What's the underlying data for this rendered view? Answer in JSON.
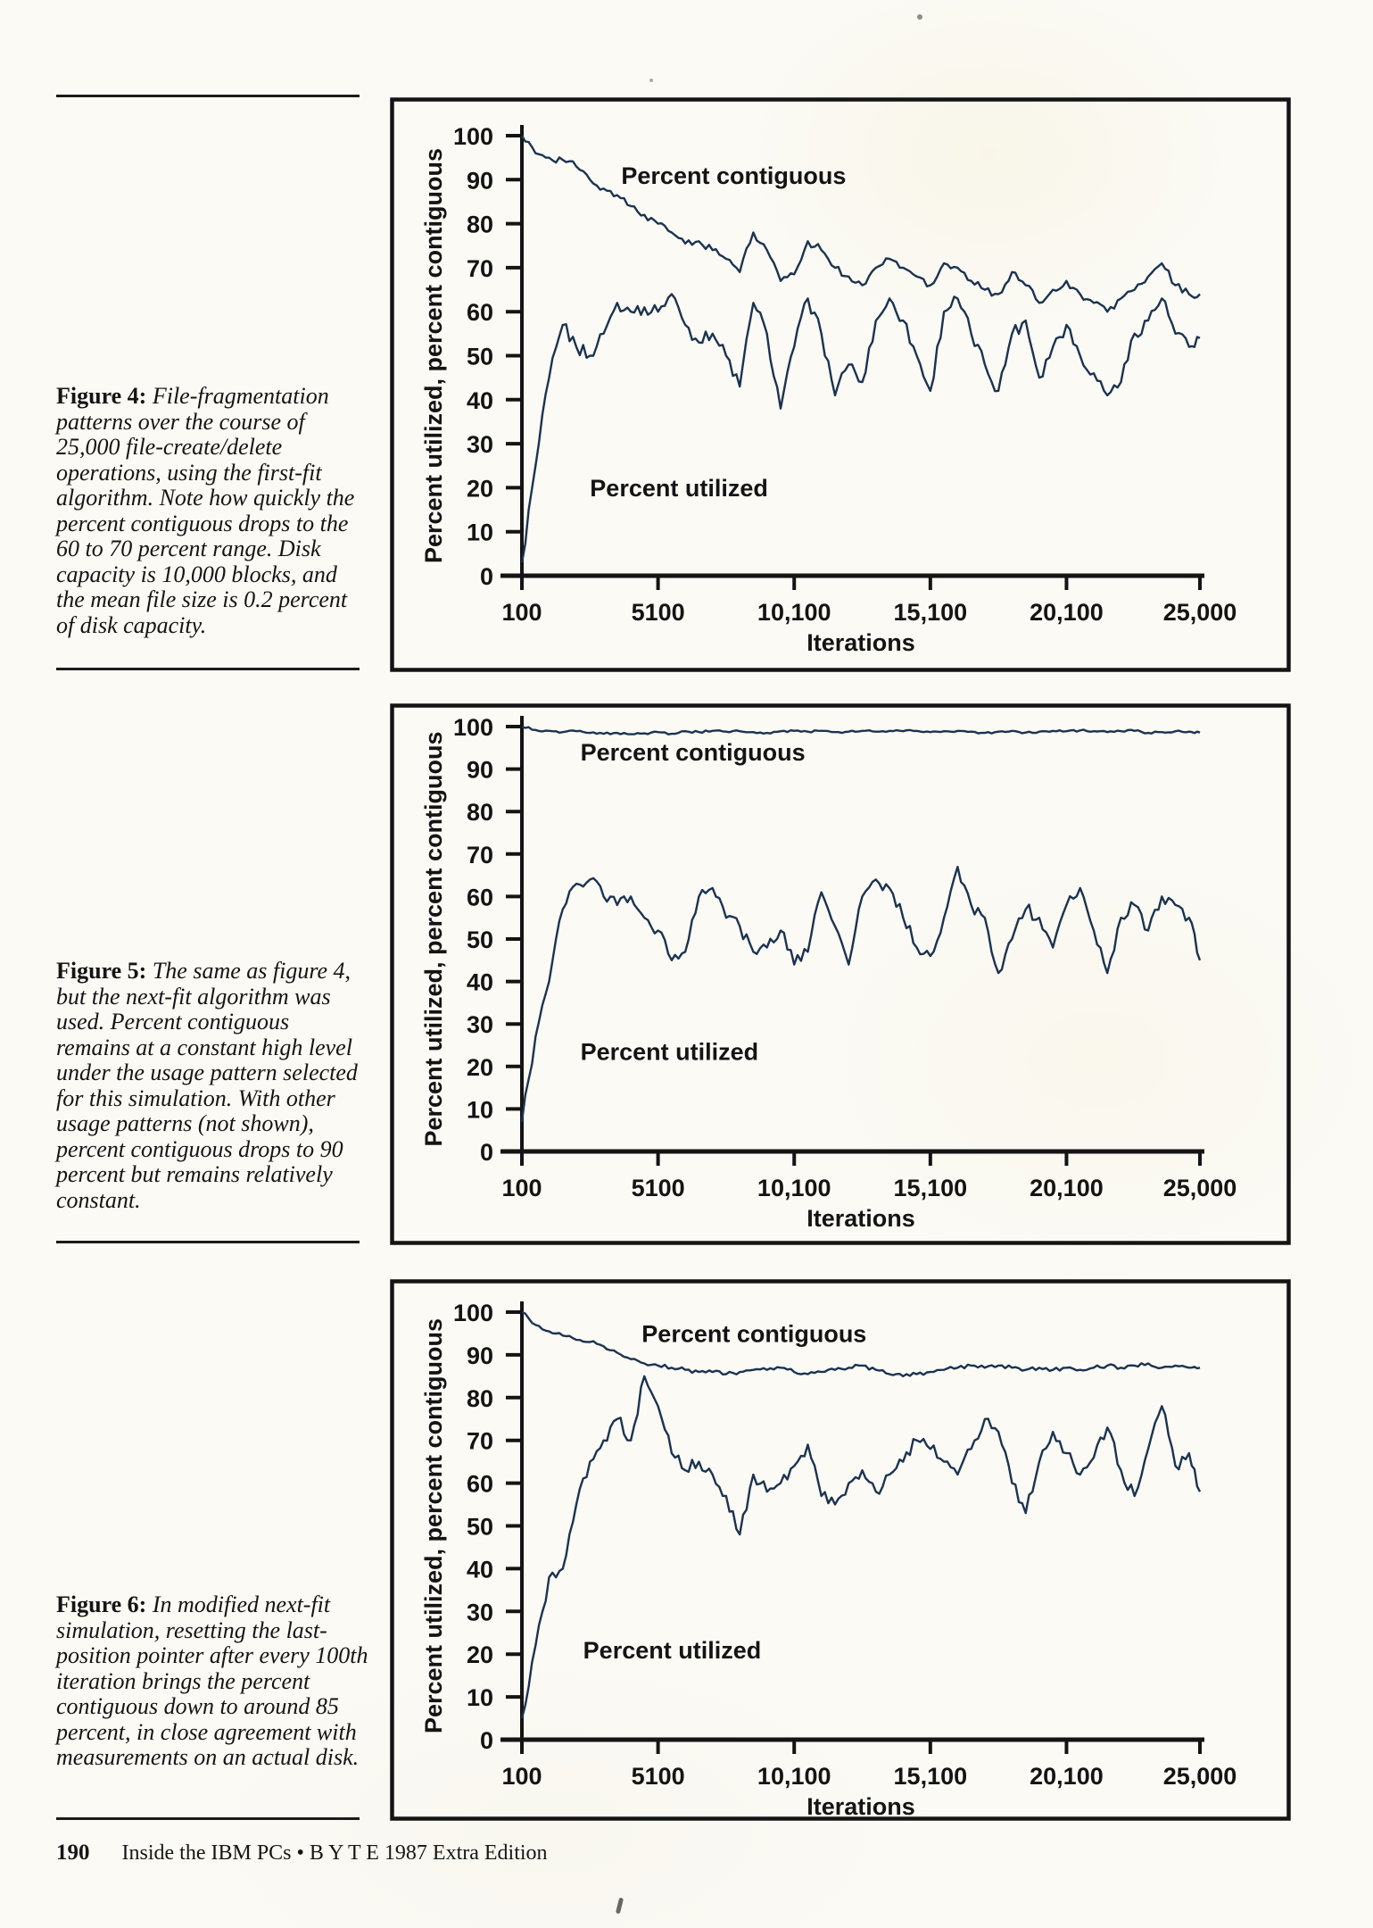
{
  "page": {
    "ink": "#141414",
    "line_color": "#1b3350",
    "background": "#fbfaf5",
    "footer": {
      "page_number": "190",
      "edition_text": "Inside the IBM PCs  •  B Y T E 1987 Extra Edition"
    }
  },
  "figures": [
    {
      "label": "Figure 4:",
      "text": " File-fragmentation patterns over the course of 25,000 file-create/delete operations, using the first-fit algorithm. Note how quickly the percent contiguous drops to the 60 to 70 percent range. Disk capacity is 10,000 blocks, and the mean file size is 0.2 percent of disk capacity."
    },
    {
      "label": "Figure 5:",
      "text": " The same as figure 4, but the next-fit algorithm was used. Percent contiguous remains at a constant high level under the usage pattern selected for this simulation. With other usage patterns (not shown), percent contiguous drops to 90 percent but remains relatively constant."
    },
    {
      "label": "Figure 6:",
      "text": " In modified next-fit simulation, resetting the last-position pointer after every 100th iteration brings the percent contiguous down to around 85 percent, in close agreement with measurements on an actual disk."
    }
  ],
  "chart_data": [
    {
      "type": "line",
      "title": "",
      "xlabel": "Iterations",
      "ylabel": "Percent utilized, percent contiguous",
      "xlim": [
        100,
        25000
      ],
      "ylim": [
        0,
        100
      ],
      "grid": false,
      "legend_position": "inline-annotations",
      "y_ticks": [
        0,
        10,
        20,
        30,
        40,
        50,
        60,
        70,
        80,
        90,
        100
      ],
      "x_ticks": [
        "100",
        "5100",
        "10,100",
        "15,100",
        "20,100",
        "25,000"
      ],
      "x_tick_values": [
        100,
        5100,
        10100,
        15100,
        20100,
        25000
      ],
      "x": [
        100,
        600,
        1100,
        1600,
        2100,
        2600,
        3100,
        3600,
        4100,
        4600,
        5100,
        5600,
        6100,
        6600,
        7100,
        7600,
        8100,
        8600,
        9100,
        9600,
        10100,
        10600,
        11100,
        11600,
        12100,
        12600,
        13100,
        13600,
        14100,
        14600,
        15100,
        15600,
        16100,
        16600,
        17100,
        17600,
        18100,
        18600,
        19100,
        19600,
        20100,
        20600,
        21100,
        21600,
        22100,
        22600,
        23100,
        23600,
        24100,
        24600,
        25000
      ],
      "series": [
        {
          "name": "Percent contiguous",
          "values": [
            100,
            96,
            95,
            94.5,
            93,
            90,
            88,
            86.5,
            84,
            82,
            80,
            78,
            75.5,
            76,
            74,
            72,
            69,
            78,
            74,
            67,
            68.5,
            76,
            74,
            70,
            68,
            66,
            70,
            72,
            70,
            68,
            66,
            71,
            70,
            67,
            65,
            64,
            69,
            66,
            62,
            65,
            67,
            64,
            62,
            60,
            63,
            65,
            68,
            71,
            66,
            64,
            64
          ],
          "label_pos": {
            "x": 3750,
            "y": 90.5
          },
          "jitter": 0.9
        },
        {
          "name": "Percent utilized",
          "values": [
            3,
            25,
            45,
            57,
            52,
            50,
            55,
            62,
            60,
            61,
            60,
            64,
            57,
            53,
            55,
            50,
            43,
            62,
            55,
            38,
            52,
            63,
            55,
            41,
            48,
            44,
            58,
            63,
            58,
            50,
            42,
            60,
            63,
            55,
            48,
            42,
            55,
            58,
            45,
            52,
            57,
            50,
            46,
            41,
            44,
            55,
            58,
            63,
            55,
            52,
            54
          ],
          "label_pos": {
            "x": 2600,
            "y": 19.5
          },
          "jitter": 1.6
        }
      ]
    },
    {
      "type": "line",
      "title": "",
      "xlabel": "Iterations",
      "ylabel": "Percent utilized, percent contiguous",
      "xlim": [
        100,
        25000
      ],
      "ylim": [
        0,
        100
      ],
      "grid": false,
      "legend_position": "inline-annotations",
      "y_ticks": [
        0,
        10,
        20,
        30,
        40,
        50,
        60,
        70,
        80,
        90,
        100
      ],
      "x_ticks": [
        "100",
        "5100",
        "10,100",
        "15,100",
        "20,100",
        "25,000"
      ],
      "x_tick_values": [
        100,
        5100,
        10100,
        15100,
        20100,
        25000
      ],
      "x": [
        100,
        600,
        1100,
        1600,
        2100,
        2600,
        3100,
        3600,
        4100,
        4600,
        5100,
        5600,
        6100,
        6600,
        7100,
        7600,
        8100,
        8600,
        9100,
        9600,
        10100,
        10600,
        11100,
        11600,
        12100,
        12600,
        13100,
        13600,
        14100,
        14600,
        15100,
        15600,
        16100,
        16600,
        17100,
        17600,
        18100,
        18600,
        19100,
        19600,
        20100,
        20600,
        21100,
        21600,
        22100,
        22600,
        23100,
        23600,
        24100,
        24600,
        25000
      ],
      "series": [
        {
          "name": "Percent contiguous",
          "values": [
            100,
            99.2,
            99,
            98.7,
            98.9,
            98.5,
            98.3,
            98.5,
            98.2,
            98.4,
            98.7,
            98.3,
            98.9,
            98.7,
            99,
            98.8,
            98.9,
            98.7,
            98.5,
            98.9,
            99,
            98.8,
            99,
            98.7,
            98.8,
            99,
            98.8,
            99,
            98.9,
            99,
            98.7,
            98.9,
            99,
            98.8,
            98.5,
            98.8,
            99,
            98.6,
            98.8,
            99,
            98.9,
            99.1,
            98.9,
            98.7,
            98.9,
            99,
            98.5,
            98.7,
            98.9,
            98.8,
            98.6
          ],
          "label_pos": {
            "x": 2250,
            "y": 93.5
          },
          "jitter": 0.25
        },
        {
          "name": "Percent utilized",
          "values": [
            7,
            27,
            40,
            57,
            63,
            64,
            60,
            58,
            60,
            55,
            52,
            45,
            47,
            60,
            62,
            55,
            53,
            47,
            48,
            52,
            44,
            47,
            61,
            53,
            44,
            60,
            64,
            62,
            55,
            48,
            46,
            55,
            67,
            58,
            55,
            42,
            50,
            57,
            55,
            48,
            58,
            62,
            52,
            42,
            55,
            58,
            52,
            60,
            58,
            55,
            45
          ],
          "label_pos": {
            "x": 2250,
            "y": 23
          },
          "jitter": 1.6
        }
      ]
    },
    {
      "type": "line",
      "title": "",
      "xlabel": "Iterations",
      "ylabel": "Percent utilized, percent contiguous",
      "xlim": [
        100,
        25000
      ],
      "ylim": [
        0,
        100
      ],
      "grid": false,
      "legend_position": "inline-annotations",
      "y_ticks": [
        0,
        10,
        20,
        30,
        40,
        50,
        60,
        70,
        80,
        90,
        100
      ],
      "x_ticks": [
        "100",
        "5100",
        "10,100",
        "15,100",
        "20,100",
        "25,000"
      ],
      "x_tick_values": [
        100,
        5100,
        10100,
        15100,
        20100,
        25000
      ],
      "x": [
        100,
        600,
        1100,
        1600,
        2100,
        2600,
        3100,
        3600,
        4100,
        4600,
        5100,
        5600,
        6100,
        6600,
        7100,
        7600,
        8100,
        8600,
        9100,
        9600,
        10100,
        10600,
        11100,
        11600,
        12100,
        12600,
        13100,
        13600,
        14100,
        14600,
        15100,
        15600,
        16100,
        16600,
        17100,
        17600,
        18100,
        18600,
        19100,
        19600,
        20100,
        20600,
        21100,
        21600,
        22100,
        22600,
        23100,
        23600,
        24100,
        24600,
        25000
      ],
      "series": [
        {
          "name": "Percent contiguous",
          "values": [
            100,
            97,
            95.5,
            94.5,
            93.5,
            93,
            92,
            90.5,
            89,
            88,
            87.5,
            87,
            86.5,
            86,
            86,
            85.5,
            86,
            86.5,
            86.5,
            87,
            86,
            85.5,
            86,
            86.5,
            87,
            87.5,
            86.5,
            85.5,
            85,
            85.5,
            86,
            86.5,
            87,
            87.5,
            87,
            87.5,
            87,
            86.5,
            87,
            86.5,
            87,
            86.5,
            87,
            87.5,
            87,
            87.5,
            88,
            87,
            87.5,
            87,
            87
          ],
          "label_pos": {
            "x": 4500,
            "y": 94.5
          },
          "jitter": 0.45
        },
        {
          "name": "Percent utilized",
          "values": [
            5,
            22,
            38,
            40,
            55,
            65,
            70,
            75,
            70,
            85,
            78,
            67,
            63,
            65,
            62,
            57,
            48,
            62,
            58,
            60,
            64,
            69,
            57,
            55,
            60,
            63,
            58,
            62,
            65,
            70,
            68,
            65,
            62,
            68,
            75,
            72,
            60,
            53,
            65,
            72,
            67,
            62,
            66,
            73,
            63,
            57,
            68,
            78,
            64,
            67,
            58
          ],
          "label_pos": {
            "x": 2350,
            "y": 20.5
          },
          "jitter": 1.6
        }
      ]
    }
  ]
}
